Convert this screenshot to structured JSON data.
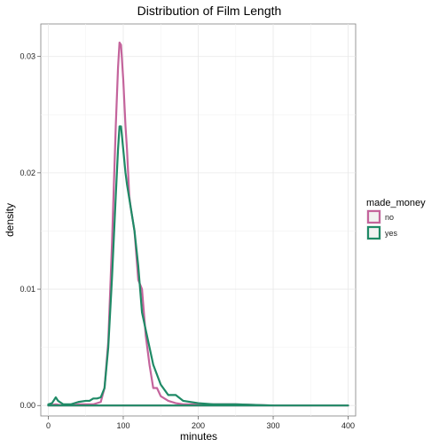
{
  "chart_data": {
    "type": "line",
    "title": "Distribution of Film Length",
    "xlabel": "minutes",
    "ylabel": "density",
    "xlim": [
      -10,
      410
    ],
    "ylim": [
      -0.0009,
      0.0328
    ],
    "x_ticks": [
      "0",
      "100",
      "200",
      "300",
      "400"
    ],
    "y_ticks": [
      "0.00",
      "0.01",
      "0.02",
      "0.03"
    ],
    "grid": true,
    "legend": {
      "title": "made_money",
      "placement": "right",
      "entries": [
        "no",
        "yes"
      ]
    },
    "series": [
      {
        "name": "no",
        "color": "#c4649c",
        "x": [
          0,
          10,
          20,
          30,
          40,
          50,
          60,
          70,
          75,
          80,
          85,
          90,
          93,
          95,
          97,
          100,
          103,
          105,
          108,
          110,
          115,
          120,
          125,
          130,
          135,
          140,
          145,
          150,
          160,
          170,
          180,
          200,
          250,
          300,
          350,
          400
        ],
        "y": [
          0.0,
          0.0001,
          0.0,
          0.0,
          0.0001,
          0.0001,
          0.0001,
          0.0003,
          0.0015,
          0.0055,
          0.014,
          0.024,
          0.029,
          0.0312,
          0.031,
          0.028,
          0.024,
          0.022,
          0.018,
          0.017,
          0.015,
          0.0108,
          0.01,
          0.006,
          0.0035,
          0.0015,
          0.0015,
          0.0008,
          0.0004,
          0.0002,
          0.0001,
          0.0001,
          0.0001,
          0.0,
          0.0,
          0.0
        ]
      },
      {
        "name": "yes",
        "color": "#1f8a66",
        "x": [
          0,
          5,
          10,
          13,
          20,
          30,
          40,
          50,
          55,
          60,
          65,
          70,
          75,
          80,
          85,
          90,
          93,
          95,
          97,
          100,
          103,
          105,
          110,
          115,
          120,
          125,
          130,
          140,
          150,
          160,
          170,
          180,
          200,
          220,
          250,
          300,
          350,
          400
        ],
        "y": [
          0.0001,
          0.0002,
          0.0007,
          0.0004,
          0.0001,
          0.0001,
          0.0003,
          0.0004,
          0.0004,
          0.0006,
          0.0006,
          0.0007,
          0.0015,
          0.005,
          0.011,
          0.018,
          0.022,
          0.024,
          0.024,
          0.022,
          0.02,
          0.019,
          0.017,
          0.015,
          0.012,
          0.008,
          0.0065,
          0.0035,
          0.0018,
          0.0009,
          0.0009,
          0.0004,
          0.0002,
          0.0001,
          0.0001,
          0.0,
          0.0,
          0.0
        ]
      }
    ]
  }
}
